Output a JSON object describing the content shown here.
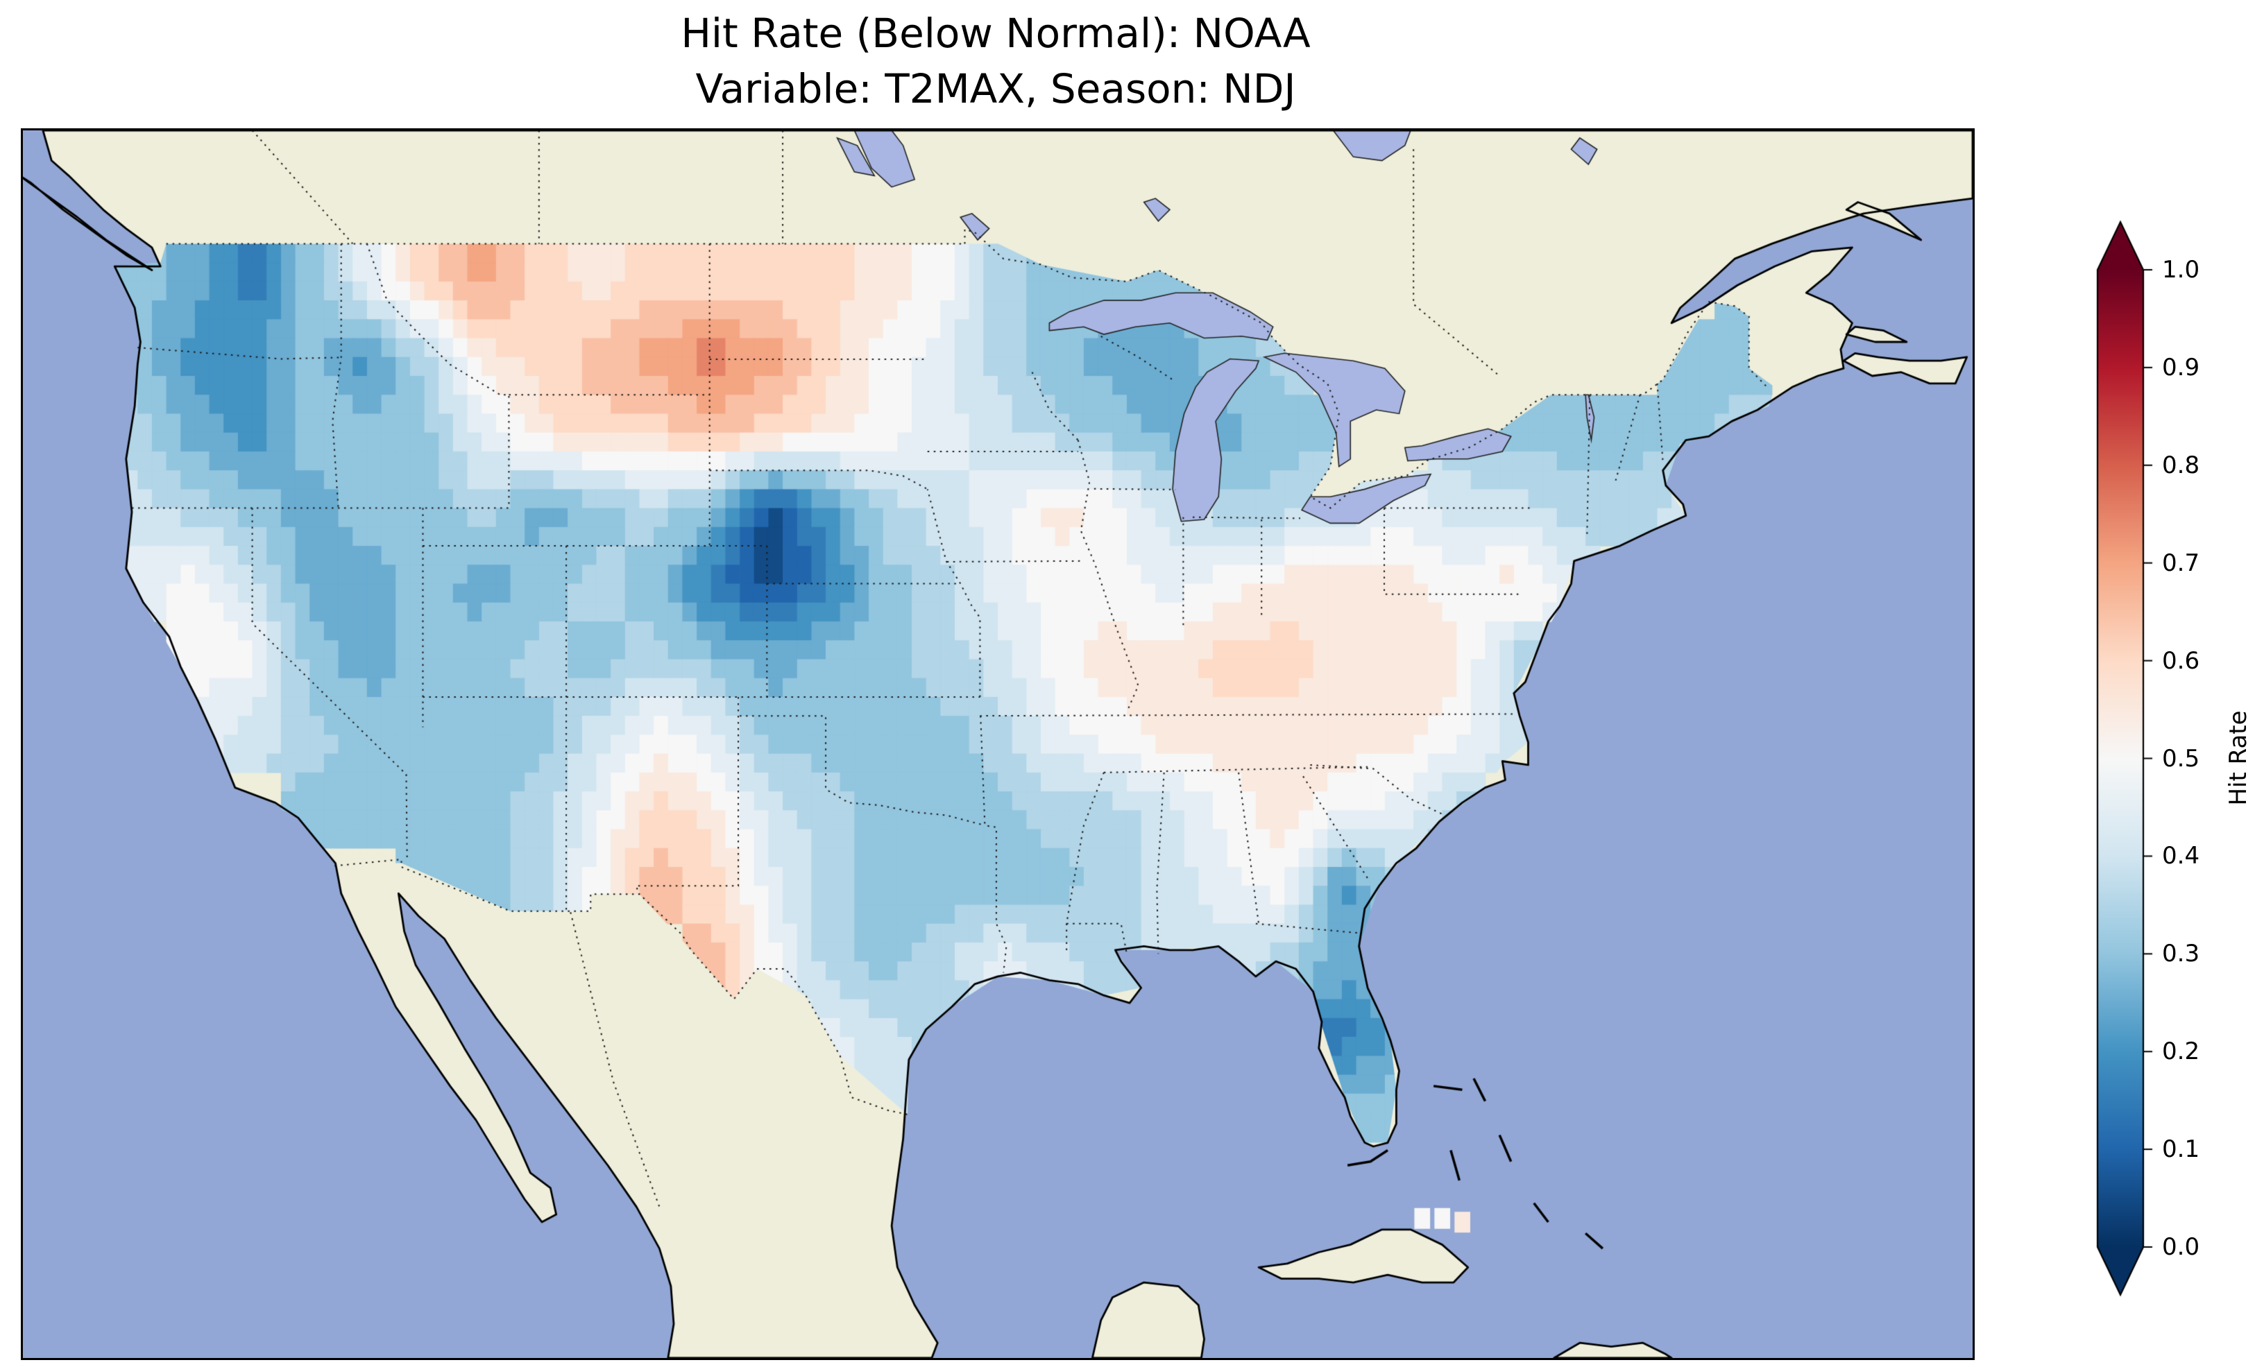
{
  "title": {
    "line1": "Hit Rate (Below Normal): NOAA",
    "line2": "Variable: T2MAX, Season: NDJ"
  },
  "colorbar": {
    "label": "Hit Rate",
    "ticks": [
      "1.0",
      "0.9",
      "0.8",
      "0.7",
      "0.6",
      "0.5",
      "0.4",
      "0.3",
      "0.2",
      "0.1",
      "0.0"
    ],
    "tick_values": [
      1.0,
      0.9,
      0.8,
      0.7,
      0.6,
      0.5,
      0.4,
      0.3,
      0.2,
      0.1,
      0.0
    ],
    "vmin": 0.0,
    "vmax": 1.0,
    "extend": "both",
    "colormap": "RdBu_r",
    "stops": [
      "#053061",
      "#2166ac",
      "#4393c3",
      "#92c5de",
      "#d1e5f0",
      "#f7f7f7",
      "#fddbc7",
      "#f4a582",
      "#d6604d",
      "#b2182b",
      "#67001f"
    ]
  },
  "map": {
    "ocean_color": "#92a7d5",
    "land_color": "#eeeedb",
    "lake_color": "#a9b6e3",
    "coast_color": "#000000",
    "border_line_color": "#1a1a1a"
  },
  "chart_data": {
    "type": "heatmap",
    "title": "Hit Rate (Below Normal): NOAA",
    "subtitle": "Variable: T2MAX, Season: NDJ",
    "source": "NOAA",
    "variable": "T2MAX",
    "season": "NDJ",
    "metric": "Hit Rate (Below Normal)",
    "colorbar_label": "Hit Rate",
    "value_range": [
      0.0,
      1.0
    ],
    "level_step": 0.05,
    "map_extent": {
      "lon": [
        -128,
        -60
      ],
      "lat": [
        19.5,
        52
      ]
    },
    "grid": {
      "lon_min": -125,
      "lon_max": -67,
      "lat_min": 25,
      "lat_max": 49,
      "nx": 29,
      "ny": 12,
      "cell_deg": 2,
      "row_order": "north-to-south"
    },
    "values": [
      [
        0.3,
        0.25,
        0.15,
        0.3,
        0.45,
        0.6,
        0.7,
        0.6,
        0.55,
        0.6,
        0.6,
        0.6,
        0.6,
        0.55,
        0.5,
        0.35,
        0.3,
        0.3,
        0.3,
        0.3,
        null,
        null,
        null,
        null,
        null,
        null,
        null,
        null,
        0.3
      ],
      [
        0.3,
        0.2,
        0.2,
        0.3,
        0.2,
        0.35,
        0.55,
        0.6,
        0.65,
        0.7,
        0.75,
        0.7,
        0.6,
        0.5,
        0.45,
        0.35,
        0.3,
        0.25,
        0.25,
        0.3,
        0.35,
        null,
        null,
        null,
        null,
        null,
        null,
        0.3,
        0.3
      ],
      [
        0.35,
        0.25,
        0.2,
        0.3,
        0.3,
        0.3,
        0.45,
        0.55,
        0.6,
        0.6,
        0.65,
        0.6,
        0.55,
        0.5,
        0.45,
        0.4,
        0.35,
        0.3,
        0.25,
        0.25,
        0.3,
        0.3,
        null,
        0.35,
        0.3,
        0.3,
        0.3,
        0.3,
        0.35
      ],
      [
        0.4,
        0.35,
        0.3,
        0.25,
        0.3,
        0.3,
        0.35,
        0.25,
        0.3,
        0.35,
        0.3,
        0.05,
        0.2,
        0.35,
        0.4,
        0.45,
        0.55,
        0.5,
        0.4,
        0.35,
        0.35,
        0.4,
        0.45,
        0.4,
        0.4,
        0.35,
        0.35,
        0.4,
        null
      ],
      [
        0.45,
        0.5,
        0.4,
        0.25,
        0.25,
        0.3,
        0.25,
        0.3,
        0.35,
        0.3,
        0.15,
        0.05,
        0.15,
        0.3,
        0.35,
        0.45,
        0.5,
        0.5,
        0.45,
        0.5,
        0.55,
        0.55,
        0.55,
        0.5,
        0.55,
        0.45,
        null,
        null,
        null
      ],
      [
        null,
        0.5,
        0.5,
        0.3,
        0.25,
        0.3,
        0.3,
        0.35,
        0.3,
        0.35,
        0.3,
        0.25,
        0.3,
        0.3,
        0.35,
        0.4,
        0.5,
        0.55,
        0.55,
        0.6,
        0.6,
        0.55,
        0.55,
        0.55,
        0.35,
        null,
        null,
        null,
        null
      ],
      [
        null,
        0.45,
        0.4,
        0.35,
        0.3,
        0.3,
        0.3,
        0.3,
        0.4,
        0.5,
        0.45,
        0.3,
        0.3,
        0.3,
        0.3,
        0.35,
        0.45,
        0.5,
        0.55,
        0.55,
        0.55,
        0.55,
        0.55,
        0.5,
        0.4,
        null,
        null,
        null,
        null
      ],
      [
        null,
        null,
        null,
        0.3,
        0.3,
        0.3,
        0.3,
        0.35,
        0.45,
        0.6,
        0.55,
        0.4,
        0.35,
        0.3,
        0.3,
        0.3,
        0.35,
        0.35,
        0.4,
        0.5,
        0.55,
        0.5,
        0.45,
        0.35,
        null,
        null,
        null,
        null,
        null
      ],
      [
        null,
        null,
        null,
        null,
        null,
        0.3,
        0.3,
        0.35,
        0.5,
        0.65,
        0.6,
        0.45,
        0.35,
        0.3,
        0.3,
        0.3,
        0.3,
        0.35,
        0.4,
        0.45,
        0.5,
        0.2,
        0.35,
        null,
        null,
        null,
        null,
        null,
        null
      ],
      [
        null,
        null,
        null,
        null,
        null,
        null,
        null,
        null,
        null,
        null,
        0.65,
        0.5,
        0.35,
        0.3,
        0.35,
        0.45,
        0.4,
        0.35,
        0.4,
        0.4,
        0.35,
        0.25,
        0.3,
        null,
        null,
        null,
        null,
        null,
        null
      ],
      [
        null,
        null,
        null,
        null,
        null,
        null,
        null,
        null,
        null,
        null,
        null,
        null,
        0.45,
        0.4,
        0.35,
        null,
        null,
        null,
        null,
        null,
        null,
        0.15,
        0.25,
        null,
        null,
        null,
        null,
        null,
        null
      ],
      [
        null,
        null,
        null,
        null,
        null,
        null,
        null,
        null,
        null,
        null,
        null,
        null,
        null,
        0.4,
        null,
        null,
        null,
        null,
        null,
        null,
        null,
        0.3,
        0.3,
        null,
        null,
        null,
        null,
        null,
        null
      ]
    ],
    "extra_cells": [
      {
        "lon": -79.2,
        "lat": 23.2,
        "value": 0.5
      },
      {
        "lon": -78.5,
        "lat": 23.2,
        "value": 0.5
      },
      {
        "lon": -77.8,
        "lat": 23.1,
        "value": 0.55
      }
    ]
  }
}
